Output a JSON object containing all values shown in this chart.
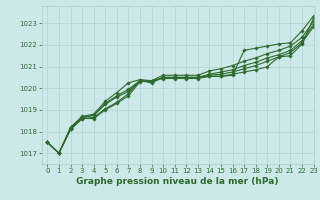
{
  "title": "Graphe pression niveau de la mer (hPa)",
  "xlim": [
    -0.5,
    23
  ],
  "ylim": [
    1016.5,
    1023.8
  ],
  "yticks": [
    1017,
    1018,
    1019,
    1020,
    1021,
    1022,
    1023
  ],
  "xticks": [
    0,
    1,
    2,
    3,
    4,
    5,
    6,
    7,
    8,
    9,
    10,
    11,
    12,
    13,
    14,
    15,
    16,
    17,
    18,
    19,
    20,
    21,
    22,
    23
  ],
  "bg_color": "#cce8e8",
  "grid_color": "#aacccc",
  "line_color": "#2d6a2d",
  "series": [
    [
      1017.5,
      1017.0,
      1018.1,
      1018.6,
      1018.6,
      1019.0,
      1019.3,
      1019.65,
      1020.3,
      1020.35,
      1020.45,
      1020.45,
      1020.45,
      1020.45,
      1020.55,
      1020.55,
      1020.65,
      1020.75,
      1020.85,
      1021.0,
      1021.45,
      1021.5,
      1022.05,
      1023.25
    ],
    [
      1017.5,
      1017.0,
      1018.15,
      1018.65,
      1018.75,
      1019.25,
      1019.6,
      1019.85,
      1020.35,
      1020.3,
      1020.5,
      1020.5,
      1020.5,
      1020.5,
      1020.6,
      1020.65,
      1020.75,
      1020.9,
      1021.05,
      1021.25,
      1021.45,
      1021.65,
      1022.1,
      1022.85
    ],
    [
      1017.5,
      1017.0,
      1018.15,
      1018.65,
      1018.75,
      1019.3,
      1019.65,
      1019.95,
      1020.35,
      1020.3,
      1020.5,
      1020.5,
      1020.5,
      1020.5,
      1020.65,
      1020.75,
      1020.85,
      1021.05,
      1021.2,
      1021.4,
      1021.55,
      1021.75,
      1022.2,
      1022.95
    ],
    [
      1017.5,
      1017.0,
      1018.2,
      1018.7,
      1018.8,
      1019.4,
      1019.8,
      1020.25,
      1020.4,
      1020.35,
      1020.6,
      1020.6,
      1020.6,
      1020.6,
      1020.8,
      1020.9,
      1021.05,
      1021.25,
      1021.4,
      1021.6,
      1021.75,
      1021.95,
      1022.35,
      1023.1
    ]
  ],
  "outlier_series": [
    1017.5,
    1017.0,
    1018.1,
    1018.6,
    1018.65,
    1019.05,
    1019.35,
    1019.75,
    1020.35,
    1020.25,
    1020.5,
    1020.5,
    1020.5,
    1020.5,
    1020.55,
    1020.55,
    1020.6,
    1021.75,
    1021.85,
    1021.95,
    1022.05,
    1022.1,
    1022.65,
    1023.35
  ],
  "marker": "D",
  "markersize": 1.8,
  "linewidth": 0.8,
  "title_fontsize": 6.5,
  "tick_fontsize": 5.0,
  "tick_color": "#2d6a2d",
  "label_color": "#2d6a2d"
}
